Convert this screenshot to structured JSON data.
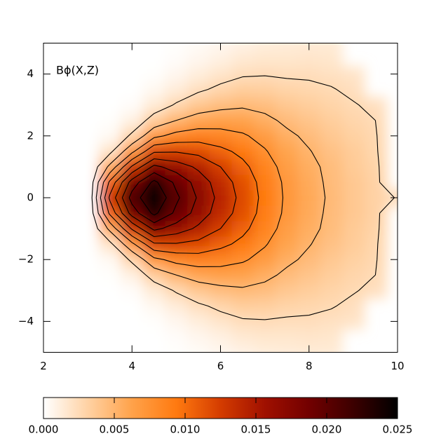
{
  "chart_data": {
    "type": "heatmap",
    "annotation": "Bϕ(X,Z)",
    "x": [
      2,
      2.5,
      3,
      3.5,
      4,
      4.5,
      5,
      5.5,
      6,
      6.5,
      7,
      7.5,
      8,
      8.5,
      9,
      9.5,
      10
    ],
    "y": [
      -5,
      -4.5,
      -4,
      -3.5,
      -3,
      -2.5,
      -2,
      -1.5,
      -1,
      -0.5,
      0,
      0.5,
      1,
      1.5,
      2,
      2.5,
      3,
      3.5,
      4,
      4.5,
      5
    ],
    "values": [
      [
        0,
        0,
        0,
        0,
        0,
        0,
        0.0001,
        0.0003,
        0.0006,
        0.0009,
        0.0012,
        0.0013,
        0.0014,
        0.0014,
        null,
        null,
        null
      ],
      [
        0,
        0,
        0,
        0,
        0,
        0,
        0.0002,
        0.0006,
        0.001,
        0.0015,
        0.0017,
        0.0017,
        0.0018,
        0.0017,
        null,
        null,
        null
      ],
      [
        0,
        0,
        0,
        0,
        0,
        0.0001,
        0.0006,
        0.0012,
        0.0018,
        0.0023,
        0.0024,
        0.0023,
        0.0023,
        0.0021,
        0.0019,
        null,
        null
      ],
      [
        0,
        0,
        0,
        0,
        0,
        0.0005,
        0.0013,
        0.0022,
        0.0029,
        0.0034,
        0.0033,
        0.003,
        0.0028,
        0.0026,
        0.0022,
        null,
        null
      ],
      [
        0,
        0,
        0,
        0,
        0.0002,
        0.0014,
        0.0027,
        0.0038,
        0.0044,
        0.0047,
        0.0044,
        0.0038,
        0.0034,
        0.003,
        0.0026,
        0.0022,
        null
      ],
      [
        0,
        0,
        0,
        0.0001,
        0.001,
        0.0034,
        0.005,
        0.006,
        0.0063,
        0.0062,
        0.0055,
        0.0046,
        0.004,
        0.0034,
        0.0029,
        0.0025,
        null
      ],
      [
        0,
        0,
        0,
        0.0004,
        0.0029,
        0.0069,
        0.0083,
        0.0088,
        0.0085,
        0.0078,
        0.0067,
        0.0054,
        0.0046,
        0.0038,
        0.0032,
        0.0027,
        null
      ],
      [
        0,
        0,
        0,
        0.0019,
        0.0069,
        0.0121,
        0.0123,
        0.0118,
        0.0106,
        0.0094,
        0.0077,
        0.0061,
        0.0051,
        0.0042,
        0.0035,
        0.0028,
        null
      ],
      [
        0,
        0,
        0,
        0.0056,
        0.0128,
        0.0181,
        0.0164,
        0.0145,
        0.0125,
        0.0106,
        0.0086,
        0.0066,
        0.0055,
        0.0045,
        0.0036,
        0.003,
        null
      ],
      [
        0,
        0,
        0,
        0.0105,
        0.0186,
        0.0231,
        0.0194,
        0.0165,
        0.0137,
        0.0115,
        0.0091,
        0.007,
        0.0057,
        0.0046,
        0.0038,
        0.0031,
        null
      ],
      [
        0,
        0,
        0,
        0.013,
        0.021,
        0.025,
        0.0205,
        0.0172,
        0.0142,
        0.0118,
        0.0093,
        0.0071,
        0.0058,
        0.0047,
        0.0038,
        0.0031,
        0.0024
      ],
      [
        0,
        0,
        0,
        0.0105,
        0.0186,
        0.0231,
        0.0194,
        0.0165,
        0.0137,
        0.0115,
        0.0091,
        0.007,
        0.0057,
        0.0046,
        0.0038,
        0.0031,
        null
      ],
      [
        0,
        0,
        0,
        0.0056,
        0.0128,
        0.0181,
        0.0164,
        0.0145,
        0.0125,
        0.0106,
        0.0086,
        0.0066,
        0.0055,
        0.0045,
        0.0036,
        0.003,
        null
      ],
      [
        0,
        0,
        0,
        0.0019,
        0.0069,
        0.0121,
        0.0123,
        0.0118,
        0.0106,
        0.0094,
        0.0077,
        0.0061,
        0.0051,
        0.0042,
        0.0035,
        0.0028,
        null
      ],
      [
        0,
        0,
        0,
        0.0004,
        0.0029,
        0.0069,
        0.0083,
        0.0088,
        0.0085,
        0.0078,
        0.0067,
        0.0054,
        0.0046,
        0.0038,
        0.0032,
        0.0027,
        null
      ],
      [
        0,
        0,
        0,
        0.0001,
        0.001,
        0.0034,
        0.005,
        0.006,
        0.0063,
        0.0062,
        0.0055,
        0.0046,
        0.004,
        0.0034,
        0.0029,
        0.0025,
        null
      ],
      [
        0,
        0,
        0,
        0,
        0.0002,
        0.0014,
        0.0027,
        0.0038,
        0.0044,
        0.0047,
        0.0044,
        0.0038,
        0.0034,
        0.003,
        0.0026,
        0.0022,
        null
      ],
      [
        0,
        0,
        0,
        0,
        0,
        0.0005,
        0.0013,
        0.0022,
        0.0029,
        0.0034,
        0.0033,
        0.003,
        0.0028,
        0.0026,
        0.0022,
        null,
        null
      ],
      [
        0,
        0,
        0,
        0,
        0,
        0.0001,
        0.0006,
        0.0012,
        0.0018,
        0.0023,
        0.0024,
        0.0023,
        0.0023,
        0.0021,
        0.0019,
        null,
        null
      ],
      [
        0,
        0,
        0,
        0,
        0,
        0,
        0.0002,
        0.0006,
        0.001,
        0.0015,
        0.0017,
        0.0017,
        0.0018,
        0.0017,
        null,
        null,
        null
      ],
      [
        0,
        0,
        0,
        0,
        0,
        0,
        0.0001,
        0.0003,
        0.0006,
        0.0009,
        0.0012,
        0.0013,
        0.0014,
        0.0014,
        null,
        null,
        null
      ]
    ],
    "xlim": [
      2,
      10
    ],
    "xticks": [
      2,
      4,
      6,
      8,
      10
    ],
    "ylim": [
      -5,
      5
    ],
    "yticks": [
      {
        "value": -4,
        "label": "−4"
      },
      {
        "value": -2,
        "label": "−2"
      },
      0,
      2,
      4
    ],
    "clim": [
      0,
      0.025
    ],
    "cticks": [
      {
        "value": 0,
        "label": "0.000"
      },
      {
        "value": 0.005,
        "label": "0.005"
      },
      {
        "value": 0.01,
        "label": "0.010"
      },
      {
        "value": 0.015,
        "label": "0.015"
      },
      {
        "value": 0.02,
        "label": "0.020"
      },
      {
        "value": 0.025,
        "label": "0.025"
      }
    ],
    "contour_levels": [
      0.0025,
      0.005,
      0.0075,
      0.01,
      0.0125,
      0.015,
      0.0175,
      0.02,
      0.0225
    ],
    "contour_color": "#000000",
    "colormap": [
      "#ffffff",
      "#ffd2a4",
      "#ffa24a",
      "#ff7a10",
      "#d43c00",
      "#a01000",
      "#720000",
      "#3c0000",
      "#000000"
    ]
  }
}
